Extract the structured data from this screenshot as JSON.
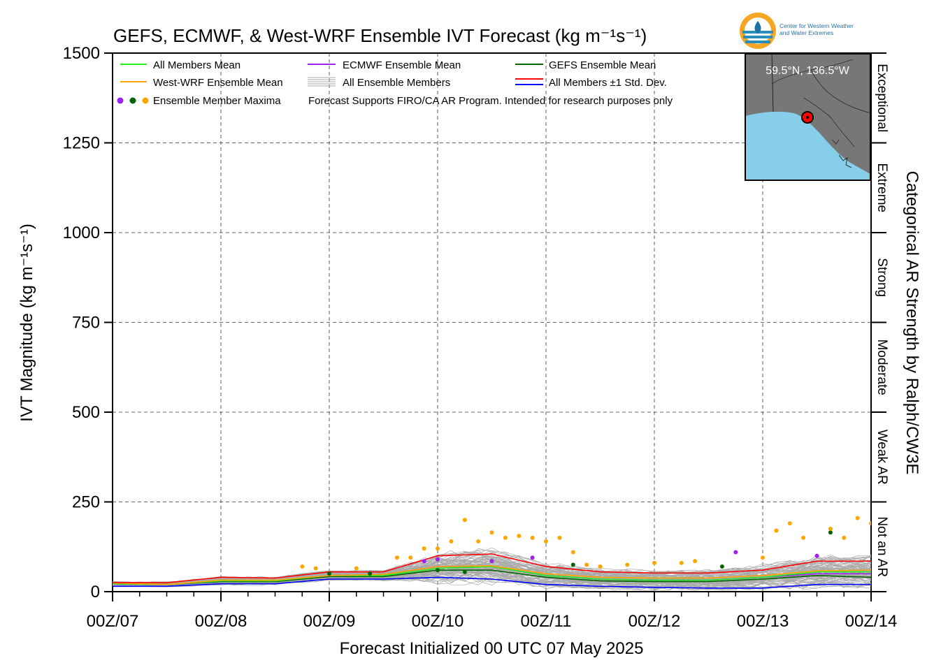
{
  "header": {
    "title": "GEFS, ECMWF, & West-WRF Ensemble IVT Forecast (kg m⁻¹s⁻¹)",
    "logo_text_line1": "Center for Western Weather",
    "logo_text_line2": "and Water Extremes"
  },
  "footer": {
    "init_label": "Forecast Initialized 00 UTC 07 May 2025"
  },
  "inset_map": {
    "location_label": "59.5°N, 136.5°W",
    "land_color": "#777777",
    "ocean_color": "#87ceeb",
    "marker_color": "#ff0000"
  },
  "legend": {
    "all_members_mean": "All Members Mean",
    "ecmwf_mean": "ECMWF Ensemble Mean",
    "gefs_mean": "GEFS Ensemble Mean",
    "westwrf_mean": "West-WRF Ensemble Mean",
    "all_members": "All Ensemble Members",
    "std_dev": "All Members ±1 Std. Dev.",
    "maxima": "Ensemble Member Maxima",
    "note": "Forecast Supports FIRO/CA AR Program. Intended for research purposes only"
  },
  "chart_data": {
    "type": "line",
    "ylabel": "IVT Magnitude (kg m⁻¹s⁻¹)",
    "xlabel": "Forecast Initialized 00 UTC 07 May 2025",
    "right_axis_label": "Categorical AR Strength by Ralph/CW3E",
    "ylim": [
      0,
      1500
    ],
    "xlim_hours": [
      0,
      168
    ],
    "y_ticks": [
      0,
      250,
      500,
      750,
      1000,
      1250,
      1500
    ],
    "x_tick_labels": [
      "00Z/07",
      "00Z/08",
      "00Z/09",
      "00Z/10",
      "00Z/11",
      "00Z/12",
      "00Z/13",
      "00Z/14"
    ],
    "grid": true,
    "legend_position": "top-left",
    "categories": [
      {
        "label": "Not an AR",
        "min": 0,
        "max": 250
      },
      {
        "label": "Weak AR",
        "min": 250,
        "max": 500
      },
      {
        "label": "Moderate",
        "min": 500,
        "max": 750
      },
      {
        "label": "Strong",
        "min": 750,
        "max": 1000
      },
      {
        "label": "Extreme",
        "min": 1000,
        "max": 1250
      },
      {
        "label": "Exceptional",
        "min": 1250,
        "max": 1500
      }
    ],
    "x": [
      0,
      12,
      24,
      36,
      48,
      60,
      72,
      84,
      96,
      108,
      120,
      132,
      144,
      156,
      168
    ],
    "series": [
      {
        "name": "All Members Mean",
        "color": "#22ee22",
        "values": [
          22,
          20,
          30,
          30,
          45,
          45,
          65,
          70,
          45,
          35,
          32,
          32,
          40,
          55,
          55
        ]
      },
      {
        "name": "West-WRF Ensemble Mean",
        "color": "#ffa500",
        "values": [
          24,
          20,
          32,
          32,
          45,
          48,
          70,
          72,
          50,
          40,
          38,
          38,
          45,
          58,
          60
        ]
      },
      {
        "name": "ECMWF Ensemble Mean",
        "color": "#a020f0",
        "values": [
          23,
          20,
          30,
          30,
          45,
          48,
          70,
          70,
          45,
          35,
          32,
          32,
          40,
          50,
          50
        ]
      },
      {
        "name": "GEFS Ensemble Mean",
        "color": "#006400",
        "values": [
          22,
          20,
          28,
          28,
          42,
          42,
          60,
          60,
          40,
          30,
          28,
          28,
          35,
          45,
          40
        ]
      },
      {
        "name": "All Members +1 Std. Dev.",
        "color": "#ff0000",
        "values": [
          25,
          25,
          40,
          38,
          55,
          55,
          100,
          105,
          70,
          55,
          52,
          52,
          60,
          85,
          85
        ]
      },
      {
        "name": "All Members -1 Std. Dev.",
        "color": "#0000ff",
        "values": [
          15,
          15,
          22,
          22,
          35,
          35,
          40,
          35,
          20,
          15,
          12,
          10,
          10,
          20,
          20
        ]
      }
    ],
    "maxima_points": [
      {
        "x": 42,
        "y": 70,
        "series": "West-WRF"
      },
      {
        "x": 45,
        "y": 65,
        "series": "West-WRF"
      },
      {
        "x": 48,
        "y": 50,
        "series": "GEFS"
      },
      {
        "x": 54,
        "y": 65,
        "series": "West-WRF"
      },
      {
        "x": 57,
        "y": 50,
        "series": "GEFS"
      },
      {
        "x": 63,
        "y": 95,
        "series": "West-WRF"
      },
      {
        "x": 66,
        "y": 95,
        "series": "West-WRF"
      },
      {
        "x": 69,
        "y": 120,
        "series": "West-WRF"
      },
      {
        "x": 69,
        "y": 85,
        "series": "ECMWF"
      },
      {
        "x": 72,
        "y": 120,
        "series": "West-WRF"
      },
      {
        "x": 72,
        "y": 90,
        "series": "ECMWF"
      },
      {
        "x": 72,
        "y": 60,
        "series": "GEFS"
      },
      {
        "x": 75,
        "y": 140,
        "series": "West-WRF"
      },
      {
        "x": 78,
        "y": 200,
        "series": "West-WRF"
      },
      {
        "x": 78,
        "y": 55,
        "series": "GEFS"
      },
      {
        "x": 81,
        "y": 140,
        "series": "West-WRF"
      },
      {
        "x": 84,
        "y": 165,
        "series": "West-WRF"
      },
      {
        "x": 84,
        "y": 85,
        "series": "ECMWF"
      },
      {
        "x": 87,
        "y": 150,
        "series": "West-WRF"
      },
      {
        "x": 90,
        "y": 155,
        "series": "West-WRF"
      },
      {
        "x": 93,
        "y": 150,
        "series": "West-WRF"
      },
      {
        "x": 93,
        "y": 95,
        "series": "ECMWF"
      },
      {
        "x": 96,
        "y": 140,
        "series": "West-WRF"
      },
      {
        "x": 99,
        "y": 150,
        "series": "West-WRF"
      },
      {
        "x": 102,
        "y": 110,
        "series": "West-WRF"
      },
      {
        "x": 102,
        "y": 75,
        "series": "GEFS"
      },
      {
        "x": 105,
        "y": 75,
        "series": "West-WRF"
      },
      {
        "x": 108,
        "y": 70,
        "series": "West-WRF"
      },
      {
        "x": 114,
        "y": 75,
        "series": "West-WRF"
      },
      {
        "x": 120,
        "y": 80,
        "series": "West-WRF"
      },
      {
        "x": 126,
        "y": 80,
        "series": "West-WRF"
      },
      {
        "x": 129,
        "y": 85,
        "series": "West-WRF"
      },
      {
        "x": 135,
        "y": 70,
        "series": "GEFS"
      },
      {
        "x": 138,
        "y": 110,
        "series": "ECMWF"
      },
      {
        "x": 144,
        "y": 95,
        "series": "West-WRF"
      },
      {
        "x": 147,
        "y": 170,
        "series": "West-WRF"
      },
      {
        "x": 150,
        "y": 190,
        "series": "West-WRF"
      },
      {
        "x": 153,
        "y": 150,
        "series": "West-WRF"
      },
      {
        "x": 156,
        "y": 100,
        "series": "ECMWF"
      },
      {
        "x": 159,
        "y": 165,
        "series": "GEFS"
      },
      {
        "x": 159,
        "y": 175,
        "series": "West-WRF"
      },
      {
        "x": 162,
        "y": 150,
        "series": "West-WRF"
      },
      {
        "x": 165,
        "y": 205,
        "series": "West-WRF"
      },
      {
        "x": 168,
        "y": 190,
        "series": "West-WRF"
      }
    ]
  }
}
